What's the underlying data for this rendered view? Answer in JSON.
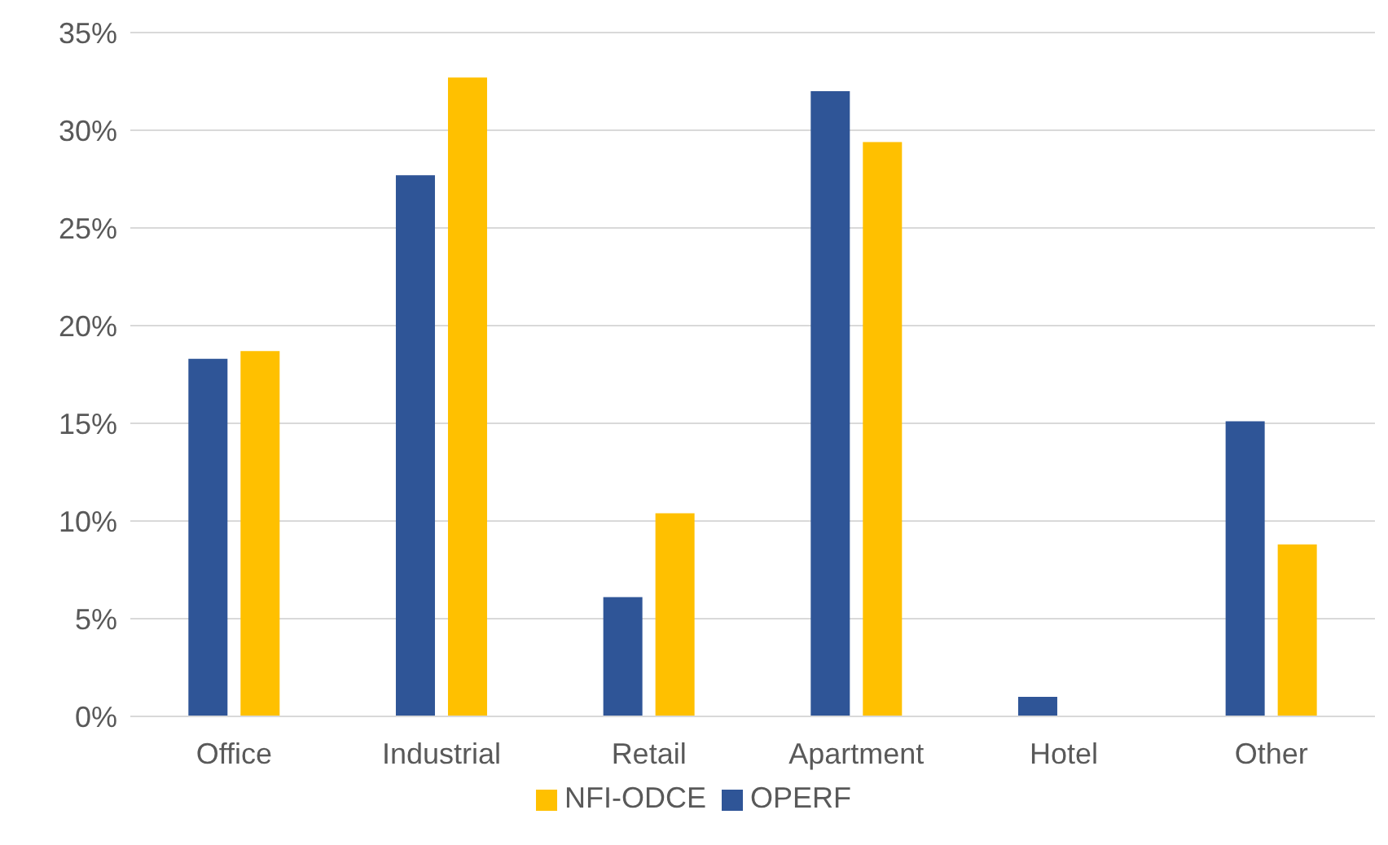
{
  "chart_data": {
    "type": "bar",
    "categories": [
      "Office",
      "Industrial",
      "Retail",
      "Apartment",
      "Hotel",
      "Other"
    ],
    "series": [
      {
        "name": "OPERF",
        "color": "#2f5597",
        "values": [
          18.3,
          27.7,
          6.1,
          32.0,
          1.0,
          15.1
        ]
      },
      {
        "name": "NFI-ODCE",
        "color": "#ffc000",
        "values": [
          18.7,
          32.7,
          10.4,
          29.4,
          0,
          8.8
        ]
      }
    ],
    "ylim": [
      0,
      35
    ],
    "yticks": [
      {
        "value": 0,
        "label": "0%"
      },
      {
        "value": 5,
        "label": "5%"
      },
      {
        "value": 10,
        "label": "10%"
      },
      {
        "value": 15,
        "label": "15%"
      },
      {
        "value": 20,
        "label": "20%"
      },
      {
        "value": 25,
        "label": "25%"
      },
      {
        "value": 30,
        "label": "30%"
      },
      {
        "value": 35,
        "label": "35%"
      }
    ],
    "grid": "y",
    "legend": "bottom"
  }
}
